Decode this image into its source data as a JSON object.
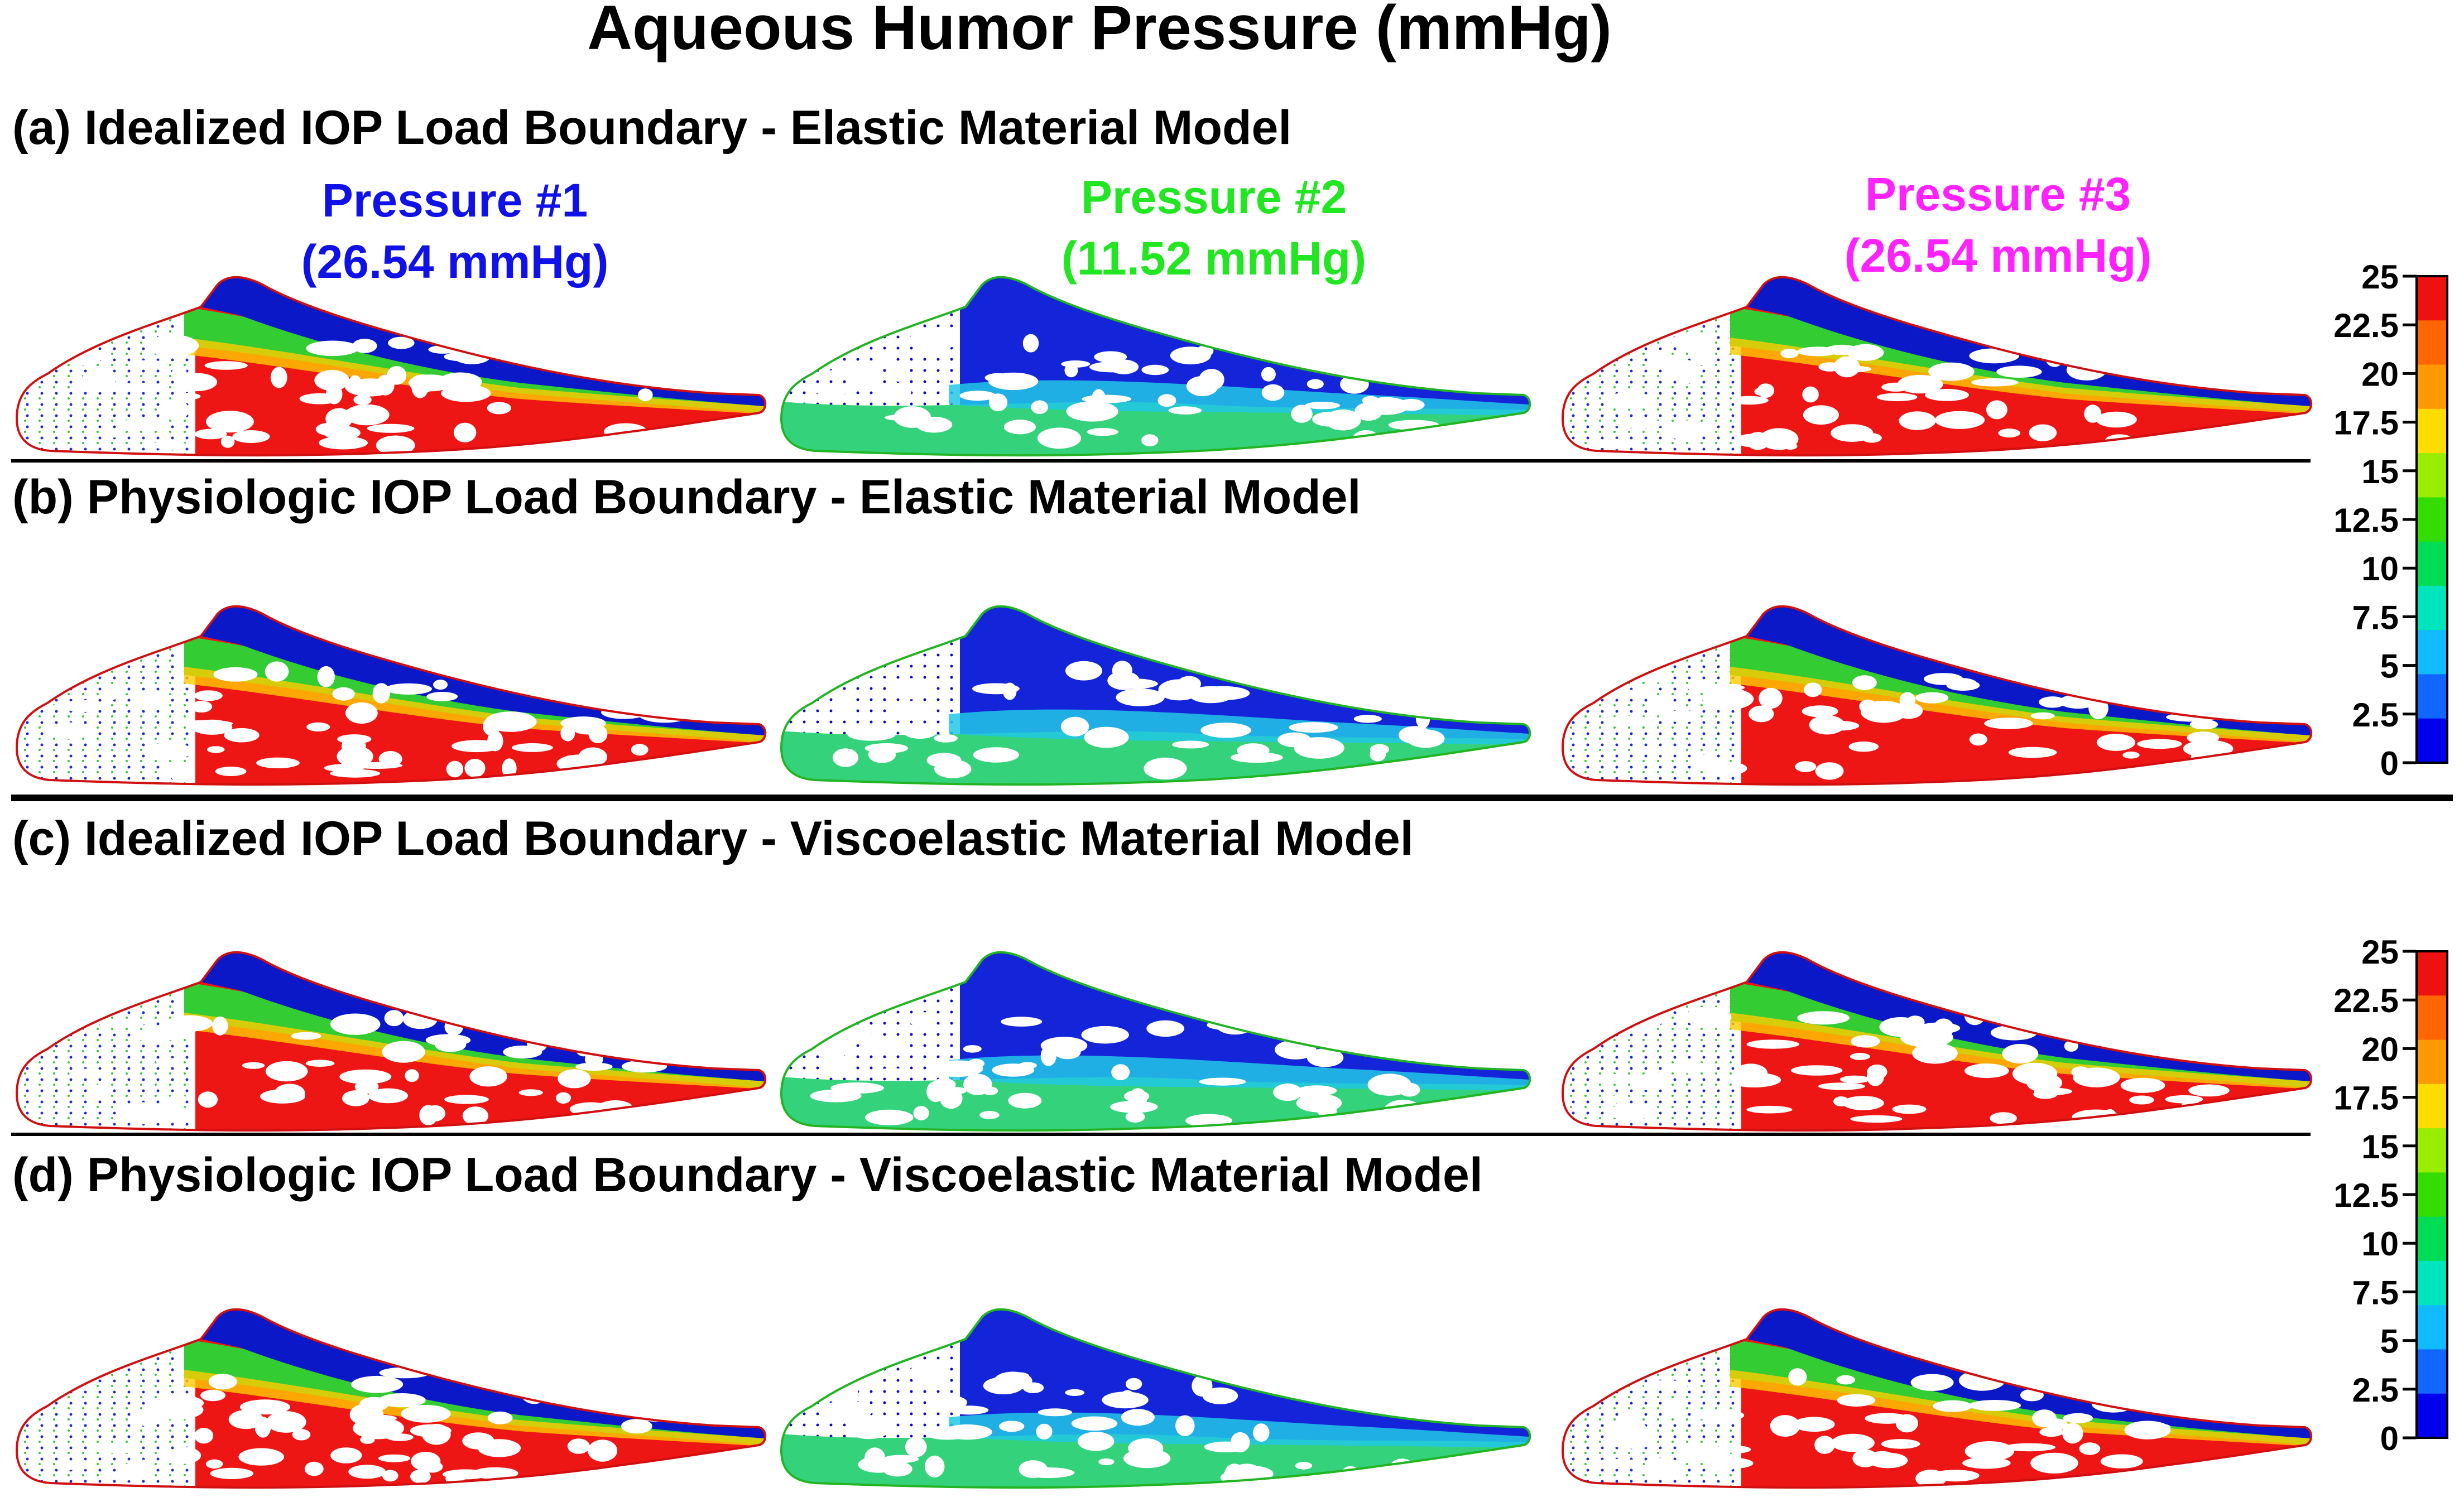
{
  "title": "Aqueous Humor Pressure (mmHg)",
  "columns": [
    {
      "label": "Pressure #1",
      "value": "(26.54 mmHg)",
      "color": "#1010e8"
    },
    {
      "label": "Pressure #2",
      "value": "(11.52 mmHg)",
      "color": "#22e622"
    },
    {
      "label": "Pressure #3",
      "value": "(26.54 mmHg)",
      "color": "#ff22ff"
    }
  ],
  "panels": [
    {
      "label": "(a) Idealized IOP Load Boundary - Elastic Material Model",
      "maps": [
        "high",
        "low",
        "high"
      ]
    },
    {
      "label": "(b) Physiologic IOP Load Boundary - Elastic Material Model",
      "maps": [
        "high",
        "low",
        "high"
      ]
    },
    {
      "label": "(c) Idealized IOP Load Boundary - Viscoelastic Material Model",
      "maps": [
        "high",
        "low",
        "high"
      ]
    },
    {
      "label": "(d) Physiologic IOP Load Boundary - Viscoelastic Material Model",
      "maps": [
        "high",
        "low",
        "high"
      ]
    }
  ],
  "colorbar": {
    "ticks": [
      "25",
      "22.5",
      "20",
      "17.5",
      "15",
      "12.5",
      "10",
      "7.5",
      "5",
      "2.5",
      "0"
    ],
    "colors": [
      "#ee1111",
      "#ff6600",
      "#ff9900",
      "#ffdd00",
      "#99ee00",
      "#33dd00",
      "#00dd55",
      "#00e5bb",
      "#11bbff",
      "#1166ff",
      "#0000ee"
    ]
  }
}
